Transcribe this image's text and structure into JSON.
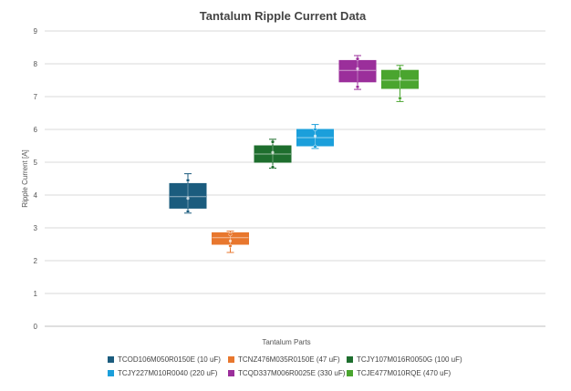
{
  "chart_data": {
    "type": "boxplot",
    "title": "Tantalum Ripple Current Data",
    "xlabel": "Tantalum Parts",
    "ylabel": "Ripple Current [A]",
    "ylim": [
      0,
      9
    ],
    "yticks": [
      0,
      1,
      2,
      3,
      4,
      5,
      6,
      7,
      8,
      9
    ],
    "grid": true,
    "legend": "bottom",
    "series": [
      {
        "name": "TCOD106M050R0150E (10 uF)",
        "color": "#1b5c7e",
        "min": 3.45,
        "q1": 3.6,
        "median": 3.95,
        "q3": 4.35,
        "max": 4.65,
        "mean": 3.9,
        "points": [
          3.5,
          4.45
        ]
      },
      {
        "name": "TCNZ476M035R0150E (47 uF)",
        "color": "#e8772e",
        "min": 2.25,
        "q1": 2.5,
        "median": 2.7,
        "q3": 2.85,
        "max": 2.9,
        "mean": 2.6,
        "points": [
          2.45,
          2.8
        ]
      },
      {
        "name": "TCJY107M016R0050G (100 uF)",
        "color": "#1e6e2e",
        "min": 4.82,
        "q1": 5.0,
        "median": 5.25,
        "q3": 5.5,
        "max": 5.7,
        "mean": 5.3,
        "points": [
          4.85,
          5.62
        ]
      },
      {
        "name": "TCJY227M010R0040 (220 uF)",
        "color": "#1b9fdb",
        "min": 5.42,
        "q1": 5.5,
        "median": 5.75,
        "q3": 6.0,
        "max": 6.15,
        "mean": 5.8,
        "points": [
          5.48,
          6.0
        ]
      },
      {
        "name": "TCQD337M006R0025E (330 uF)",
        "color": "#9b2f9b",
        "min": 7.22,
        "q1": 7.45,
        "median": 7.8,
        "q3": 8.1,
        "max": 8.25,
        "mean": 7.85,
        "points": [
          7.3,
          8.15
        ]
      },
      {
        "name": "TCJE477M010RQE (470 uF)",
        "color": "#4aa52f",
        "min": 6.85,
        "q1": 7.25,
        "median": 7.5,
        "q3": 7.8,
        "max": 7.95,
        "mean": 7.55,
        "points": [
          6.95,
          7.85
        ]
      }
    ]
  }
}
